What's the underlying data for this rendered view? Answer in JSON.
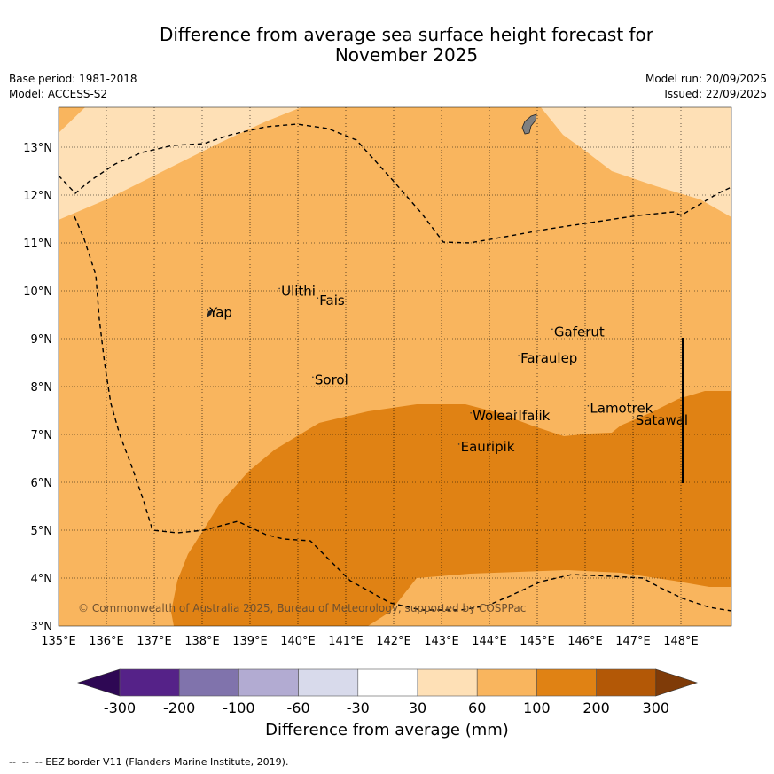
{
  "title": {
    "line1": "Difference from average sea surface height forecast for",
    "line2": "November 2025"
  },
  "meta": {
    "base_period": "Base period: 1981-2018",
    "model": "Model: ACCESS-S2",
    "model_run": "Model run: 20/09/2025",
    "issued": "Issued: 22/09/2025"
  },
  "map": {
    "lon_labels": [
      "135°E",
      "136°E",
      "137°E",
      "138°E",
      "139°E",
      "140°E",
      "141°E",
      "142°E",
      "143°E",
      "144°E",
      "145°E",
      "146°E",
      "147°E",
      "148°E"
    ],
    "lat_labels": [
      "3°N",
      "4°N",
      "5°N",
      "6°N",
      "7°N",
      "8°N",
      "9°N",
      "10°N",
      "11°N",
      "12°N",
      "13°N"
    ],
    "copyright": "© Commonwealth of Australia 2025, Bureau of Meteorology, supported by COSPPac",
    "places": [
      {
        "name": "Yap",
        "lon": 138.15,
        "lat": 9.45
      },
      {
        "name": "Ulithi",
        "lon": 139.65,
        "lat": 9.9
      },
      {
        "name": "Fais",
        "lon": 140.45,
        "lat": 9.7
      },
      {
        "name": "Gaferut",
        "lon": 145.35,
        "lat": 9.05
      },
      {
        "name": "Faraulep",
        "lon": 144.65,
        "lat": 8.5
      },
      {
        "name": "Sorol",
        "lon": 140.35,
        "lat": 8.05
      },
      {
        "name": "Woleai",
        "lon": 143.65,
        "lat": 7.3
      },
      {
        "name": "Ifalik",
        "lon": 144.6,
        "lat": 7.3
      },
      {
        "name": "Lamotrek",
        "lon": 146.1,
        "lat": 7.45
      },
      {
        "name": "Satawal",
        "lon": 147.05,
        "lat": 7.2
      },
      {
        "name": "Eauripik",
        "lon": 143.4,
        "lat": 6.65
      }
    ]
  },
  "colorbar": {
    "ticks": [
      "-300",
      "-200",
      "-100",
      "-60",
      "-30",
      "30",
      "60",
      "100",
      "200",
      "300"
    ],
    "colors": [
      "#2e0854",
      "#552288",
      "#8073ac",
      "#b2abd2",
      "#d8daeb",
      "#ffffff",
      "#fee0b6",
      "#f9b55e",
      "#e08214",
      "#b35806",
      "#7f3b08"
    ],
    "label": "Difference from average (mm)"
  },
  "footnote": "--  --  -- EEZ border V11 (Flanders Marine Institute, 2019)."
}
